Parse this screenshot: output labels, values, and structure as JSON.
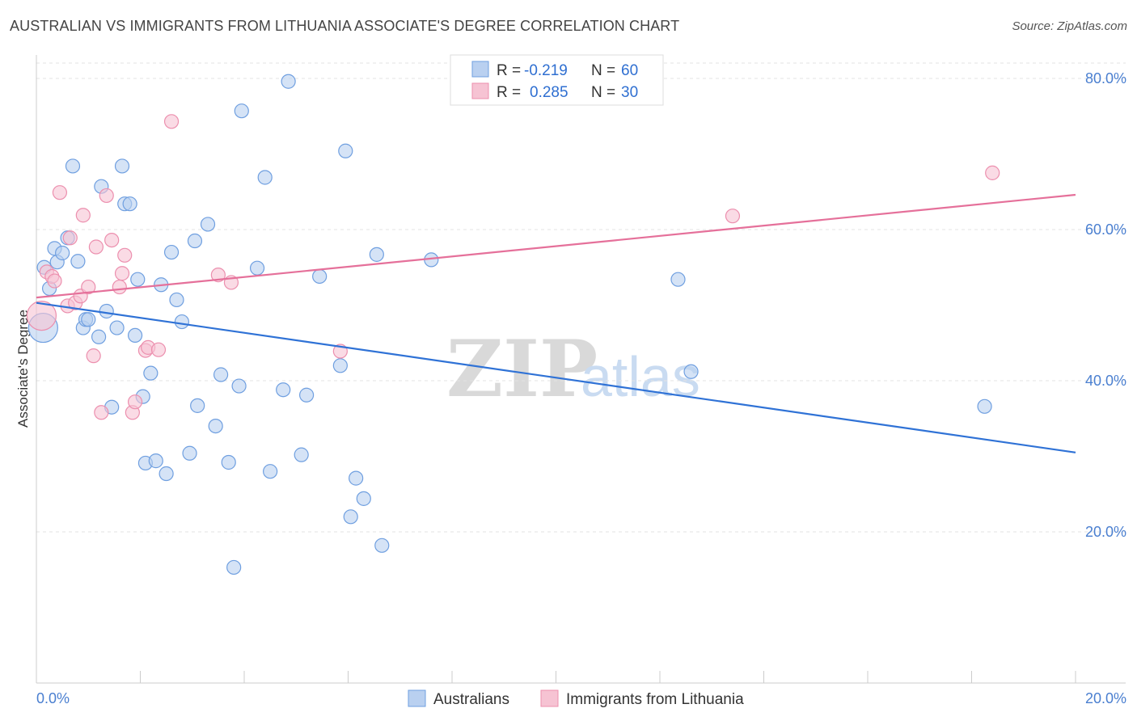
{
  "title": "AUSTRALIAN VS IMMIGRANTS FROM LITHUANIA ASSOCIATE'S DEGREE CORRELATION CHART",
  "source": "Source: ZipAtlas.com",
  "watermark": {
    "zip": "ZIP",
    "atlas": "atlas"
  },
  "colors": {
    "blue_fill": "#b9d0f0",
    "blue_stroke": "#6f9fe0",
    "blue_line": "#2f72d6",
    "pink_fill": "#f6c3d3",
    "pink_stroke": "#ec8fae",
    "pink_line": "#e5709a",
    "grid": "#e3e3e3",
    "tick_label": "#4a7fd0"
  },
  "legend": {
    "rows": [
      {
        "r_label": "R =",
        "r_value": "-0.219",
        "n_label": "N =",
        "n_value": "60"
      },
      {
        "r_label": "R =",
        "r_value": "0.285",
        "n_label": "N =",
        "n_value": "30"
      }
    ]
  },
  "bottom_legend": [
    "Australians",
    "Immigrants from Lithuania"
  ],
  "chart_data": {
    "type": "scatter",
    "title": "AUSTRALIAN VS IMMIGRANTS FROM LITHUANIA ASSOCIATE'S DEGREE CORRELATION CHART",
    "xlabel": "",
    "ylabel": "Associate's Degree",
    "xlim": [
      0,
      20
    ],
    "ylim": [
      0,
      84
    ],
    "x_tick_labels": [
      {
        "value": 0,
        "label": "0.0%"
      },
      {
        "value": 20,
        "label": "20.0%"
      }
    ],
    "y_tick_labels": [
      {
        "value": 20,
        "label": "20.0%"
      },
      {
        "value": 40,
        "label": "40.0%"
      },
      {
        "value": 60,
        "label": "60.0%"
      },
      {
        "value": 80,
        "label": "80.0%"
      }
    ],
    "series": [
      {
        "name": "Australians",
        "R": -0.219,
        "N": 60,
        "trend": {
          "x": [
            0,
            20
          ],
          "y": [
            50.3,
            30.5
          ]
        },
        "points": [
          {
            "x": 0.13,
            "y": 47.0,
            "big": true
          },
          {
            "x": 0.15,
            "y": 55.0
          },
          {
            "x": 0.25,
            "y": 52.2
          },
          {
            "x": 0.35,
            "y": 57.5
          },
          {
            "x": 0.4,
            "y": 55.7
          },
          {
            "x": 0.5,
            "y": 56.9
          },
          {
            "x": 0.6,
            "y": 58.9
          },
          {
            "x": 0.7,
            "y": 68.4
          },
          {
            "x": 0.8,
            "y": 55.8
          },
          {
            "x": 0.9,
            "y": 47.0
          },
          {
            "x": 0.95,
            "y": 48.1
          },
          {
            "x": 1.0,
            "y": 48.1
          },
          {
            "x": 1.2,
            "y": 45.8
          },
          {
            "x": 1.25,
            "y": 65.7
          },
          {
            "x": 1.35,
            "y": 49.2
          },
          {
            "x": 1.45,
            "y": 36.5
          },
          {
            "x": 1.55,
            "y": 47.0
          },
          {
            "x": 1.65,
            "y": 68.4
          },
          {
            "x": 1.7,
            "y": 63.4
          },
          {
            "x": 1.8,
            "y": 63.4
          },
          {
            "x": 1.9,
            "y": 46.0
          },
          {
            "x": 1.95,
            "y": 53.4
          },
          {
            "x": 2.05,
            "y": 37.9
          },
          {
            "x": 2.1,
            "y": 29.1
          },
          {
            "x": 2.2,
            "y": 41.0
          },
          {
            "x": 2.3,
            "y": 29.4
          },
          {
            "x": 2.4,
            "y": 52.7
          },
          {
            "x": 2.5,
            "y": 27.7
          },
          {
            "x": 2.6,
            "y": 57.0
          },
          {
            "x": 2.7,
            "y": 50.7
          },
          {
            "x": 2.8,
            "y": 47.8
          },
          {
            "x": 2.95,
            "y": 30.4
          },
          {
            "x": 3.05,
            "y": 58.5
          },
          {
            "x": 3.1,
            "y": 36.7
          },
          {
            "x": 3.3,
            "y": 60.7
          },
          {
            "x": 3.45,
            "y": 34.0
          },
          {
            "x": 3.55,
            "y": 40.8
          },
          {
            "x": 3.7,
            "y": 29.2
          },
          {
            "x": 3.8,
            "y": 15.3
          },
          {
            "x": 3.9,
            "y": 39.3
          },
          {
            "x": 3.95,
            "y": 75.7
          },
          {
            "x": 4.25,
            "y": 54.9
          },
          {
            "x": 4.4,
            "y": 66.9
          },
          {
            "x": 4.5,
            "y": 28.0
          },
          {
            "x": 4.75,
            "y": 38.8
          },
          {
            "x": 4.85,
            "y": 79.6
          },
          {
            "x": 5.1,
            "y": 30.2
          },
          {
            "x": 5.2,
            "y": 38.1
          },
          {
            "x": 5.45,
            "y": 53.8
          },
          {
            "x": 5.85,
            "y": 42.0
          },
          {
            "x": 5.95,
            "y": 70.4
          },
          {
            "x": 6.05,
            "y": 22.0
          },
          {
            "x": 6.15,
            "y": 27.1
          },
          {
            "x": 6.3,
            "y": 24.4
          },
          {
            "x": 6.55,
            "y": 56.7
          },
          {
            "x": 6.65,
            "y": 18.2
          },
          {
            "x": 7.6,
            "y": 56.0
          },
          {
            "x": 12.35,
            "y": 53.4
          },
          {
            "x": 12.6,
            "y": 41.2
          },
          {
            "x": 18.25,
            "y": 36.6
          }
        ]
      },
      {
        "name": "Immigrants from Lithuania",
        "R": 0.285,
        "N": 30,
        "trend": {
          "x": [
            0,
            20
          ],
          "y": [
            51.0,
            64.6
          ]
        },
        "points": [
          {
            "x": 0.1,
            "y": 48.6,
            "big": true
          },
          {
            "x": 0.2,
            "y": 54.4
          },
          {
            "x": 0.3,
            "y": 53.8
          },
          {
            "x": 0.35,
            "y": 53.2
          },
          {
            "x": 0.45,
            "y": 64.9
          },
          {
            "x": 0.6,
            "y": 49.9
          },
          {
            "x": 0.65,
            "y": 58.9
          },
          {
            "x": 0.75,
            "y": 50.3
          },
          {
            "x": 0.85,
            "y": 51.2
          },
          {
            "x": 0.9,
            "y": 61.9
          },
          {
            "x": 1.0,
            "y": 52.4
          },
          {
            "x": 1.1,
            "y": 43.3
          },
          {
            "x": 1.15,
            "y": 57.7
          },
          {
            "x": 1.25,
            "y": 35.8
          },
          {
            "x": 1.35,
            "y": 64.5
          },
          {
            "x": 1.45,
            "y": 58.6
          },
          {
            "x": 1.6,
            "y": 52.4
          },
          {
            "x": 1.65,
            "y": 54.2
          },
          {
            "x": 1.7,
            "y": 56.6
          },
          {
            "x": 1.85,
            "y": 35.8
          },
          {
            "x": 1.9,
            "y": 37.2
          },
          {
            "x": 2.1,
            "y": 44.0
          },
          {
            "x": 2.15,
            "y": 44.4
          },
          {
            "x": 2.35,
            "y": 44.1
          },
          {
            "x": 2.6,
            "y": 74.3
          },
          {
            "x": 3.5,
            "y": 54.0
          },
          {
            "x": 3.75,
            "y": 53.0
          },
          {
            "x": 5.85,
            "y": 43.9
          },
          {
            "x": 13.4,
            "y": 61.8
          },
          {
            "x": 18.4,
            "y": 67.5
          }
        ]
      }
    ]
  }
}
